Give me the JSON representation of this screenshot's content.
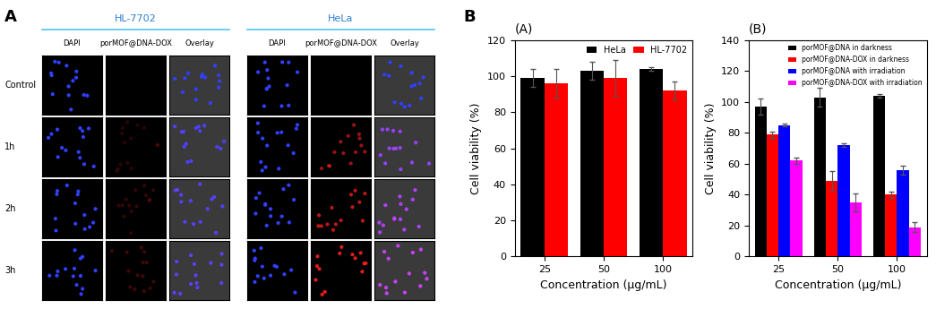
{
  "figure_labels": [
    "A",
    "B"
  ],
  "microscopy": {
    "groups": [
      "HL-7702",
      "HeLa"
    ],
    "columns": [
      "DAPI",
      "porMOF@DNA-DOX",
      "Overlay"
    ],
    "rows": [
      "Control",
      "1h",
      "2h",
      "3h"
    ]
  },
  "chart_data": [
    {
      "type": "bar",
      "title": "(A)",
      "categories": [
        "25",
        "50",
        "100"
      ],
      "x_label": "Concentration (μg/mL)",
      "y_label": "Cell viability (%)",
      "series": [
        {
          "name": "HeLa",
          "color": "#000000",
          "values": [
            99,
            103,
            104
          ],
          "errors": [
            5,
            5,
            1
          ]
        },
        {
          "name": "HL-7702",
          "color": "#ff0000",
          "values": [
            96,
            99,
            92
          ],
          "errors": [
            8,
            10,
            5
          ]
        }
      ],
      "ylim": [
        0,
        120
      ],
      "yticks": [
        0,
        20,
        40,
        60,
        80,
        100,
        120
      ],
      "legend": "upper right"
    },
    {
      "type": "bar",
      "title": "(B)",
      "categories": [
        "25",
        "50",
        "100"
      ],
      "x_label": "Concentration (μg/mL)",
      "y_label": "Cell viability (%)",
      "series": [
        {
          "name": "porMOF@DNA in darkness",
          "color": "#000000",
          "values": [
            97,
            103,
            104
          ],
          "errors": [
            5,
            6,
            1
          ]
        },
        {
          "name": "porMOF@DNA-DOX in darkness",
          "color": "#ff0000",
          "values": [
            79,
            49,
            40
          ],
          "errors": [
            2,
            6,
            2
          ]
        },
        {
          "name": "porMOF@DNA with irradiation",
          "color": "#0000ff",
          "values": [
            85,
            72,
            56
          ],
          "errors": [
            1,
            1,
            3
          ]
        },
        {
          "name": "porMOF@DNA-DOX with irradiation",
          "color": "#ff00ff",
          "values": [
            62,
            35,
            19
          ],
          "errors": [
            2,
            6,
            3
          ]
        }
      ],
      "ylim": [
        0,
        140
      ],
      "yticks": [
        0,
        20,
        40,
        60,
        80,
        100,
        120,
        140
      ],
      "legend": "upper right"
    }
  ]
}
